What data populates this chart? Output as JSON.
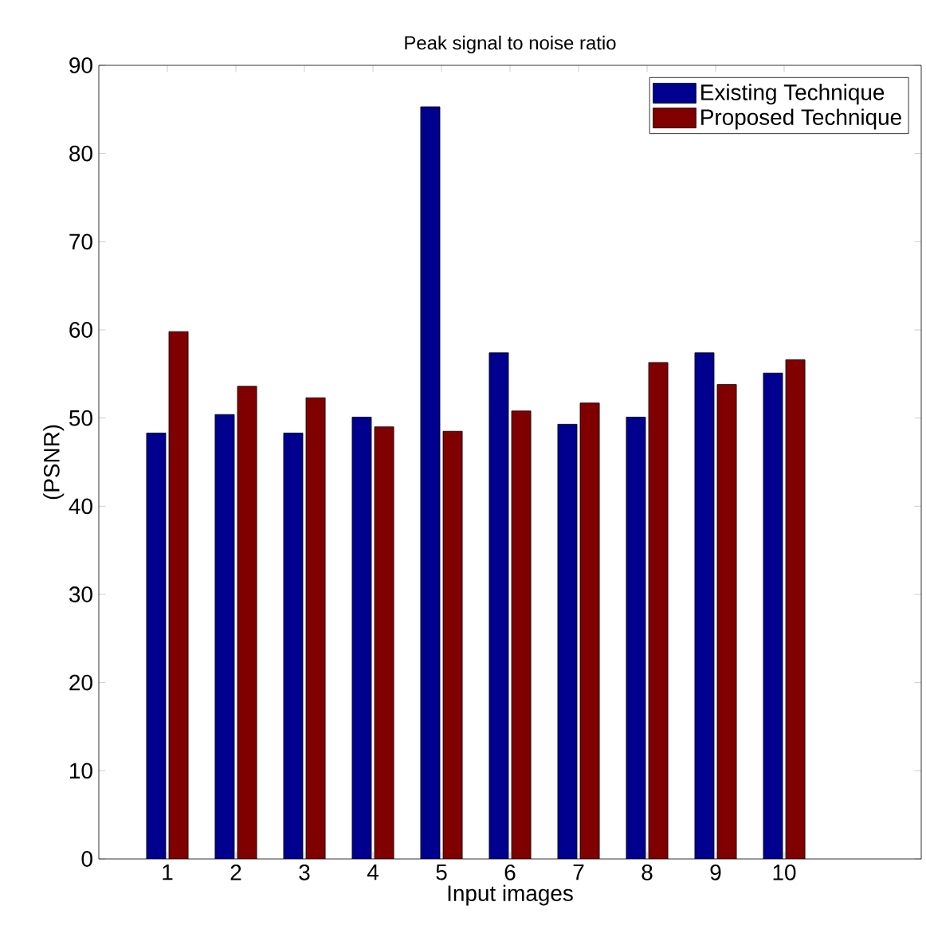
{
  "chart_data": {
    "type": "bar",
    "title": "Peak signal to noise ratio",
    "xlabel": "Input images",
    "ylabel": "(PSNR)",
    "x": [
      1,
      2,
      3,
      4,
      5,
      6,
      7,
      8,
      9,
      10
    ],
    "xlim": [
      0,
      12
    ],
    "xticks": [
      1,
      2,
      3,
      4,
      5,
      6,
      7,
      8,
      9,
      10
    ],
    "ylim": [
      0,
      90
    ],
    "yticks": [
      0,
      10,
      20,
      30,
      40,
      50,
      60,
      70,
      80,
      90
    ],
    "grid": false,
    "legend": "top right",
    "series": [
      {
        "name": "Existing Technique",
        "color": "#00008f",
        "values": [
          48.3,
          50.4,
          48.3,
          50.1,
          85.3,
          57.4,
          49.3,
          50.1,
          57.4,
          55.1
        ]
      },
      {
        "name": "Proposed Technique",
        "color": "#800000",
        "values": [
          59.8,
          53.6,
          52.3,
          49.0,
          48.5,
          50.8,
          51.7,
          56.3,
          53.8,
          56.6
        ]
      }
    ]
  }
}
